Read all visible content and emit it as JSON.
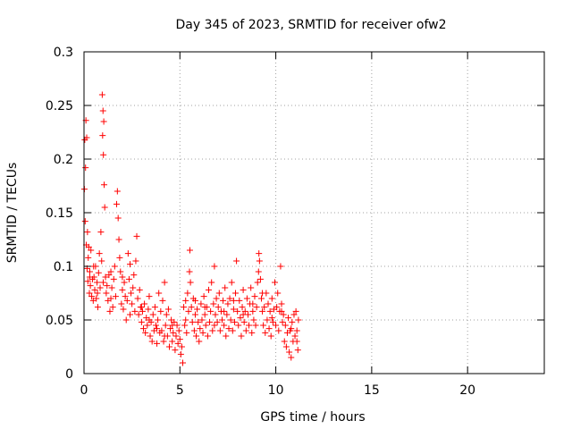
{
  "chart_data": {
    "type": "scatter",
    "title": "Day 345 of 2023, SRMTID for receiver ofw2",
    "xlabel": "GPS time / hours",
    "ylabel": "SRMTID / TECUs",
    "xlim": [
      0,
      24
    ],
    "ylim": [
      0,
      0.3
    ],
    "xticks": [
      0,
      5,
      10,
      15,
      20
    ],
    "yticks": [
      0,
      0.05,
      0.1,
      0.15,
      0.2,
      0.25,
      0.3
    ],
    "xtick_labels": [
      "0",
      "5",
      "10",
      "15",
      "20"
    ],
    "ytick_labels": [
      "0",
      "0.05",
      "0.1",
      "0.15",
      "0.2",
      "0.25",
      "0.3"
    ],
    "grid": true,
    "marker": "+",
    "series": [
      {
        "name": "SRMTID",
        "color": "#ff0000",
        "points": [
          [
            0.02,
            0.172
          ],
          [
            0.04,
            0.218
          ],
          [
            0.06,
            0.142
          ],
          [
            0.08,
            0.192
          ],
          [
            0.1,
            0.236
          ],
          [
            0.12,
            0.12
          ],
          [
            0.14,
            0.22
          ],
          [
            0.16,
            0.098
          ],
          [
            0.18,
            0.132
          ],
          [
            0.2,
            0.086
          ],
          [
            0.22,
            0.108
          ],
          [
            0.25,
            0.118
          ],
          [
            0.28,
            0.075
          ],
          [
            0.3,
            0.095
          ],
          [
            0.33,
            0.082
          ],
          [
            0.36,
            0.115
          ],
          [
            0.4,
            0.072
          ],
          [
            0.44,
            0.088
          ],
          [
            0.48,
            0.068
          ],
          [
            0.52,
            0.09
          ],
          [
            0.56,
            0.078
          ],
          [
            0.6,
            0.1
          ],
          [
            0.64,
            0.07
          ],
          [
            0.68,
            0.085
          ],
          [
            0.72,
            0.062
          ],
          [
            0.76,
            0.094
          ],
          [
            0.8,
            0.112
          ],
          [
            0.84,
            0.08
          ],
          [
            0.88,
            0.132
          ],
          [
            0.92,
            0.105
          ],
          [
            0.95,
            0.26
          ],
          [
            0.97,
            0.222
          ],
          [
            0.99,
            0.245
          ],
          [
            1.01,
            0.204
          ],
          [
            1.03,
            0.235
          ],
          [
            1.05,
            0.176
          ],
          [
            1.08,
            0.155
          ],
          [
            1.12,
            0.09
          ],
          [
            1.16,
            0.075
          ],
          [
            1.2,
            0.082
          ],
          [
            1.25,
            0.068
          ],
          [
            1.3,
            0.092
          ],
          [
            1.35,
            0.058
          ],
          [
            1.4,
            0.07
          ],
          [
            1.45,
            0.08
          ],
          [
            1.5,
            0.062
          ],
          [
            1.55,
            0.088
          ],
          [
            1.6,
            0.1
          ],
          [
            1.65,
            0.072
          ],
          [
            1.7,
            0.158
          ],
          [
            1.74,
            0.17
          ],
          [
            1.78,
            0.145
          ],
          [
            1.82,
            0.125
          ],
          [
            1.86,
            0.108
          ],
          [
            1.9,
            0.095
          ],
          [
            1.95,
            0.065
          ],
          [
            2.0,
            0.078
          ],
          [
            2.05,
            0.06
          ],
          [
            2.1,
            0.085
          ],
          [
            2.15,
            0.072
          ],
          [
            2.2,
            0.05
          ],
          [
            2.25,
            0.068
          ],
          [
            2.3,
            0.112
          ],
          [
            2.35,
            0.088
          ],
          [
            2.4,
            0.102
          ],
          [
            2.45,
            0.075
          ],
          [
            2.5,
            0.065
          ],
          [
            2.55,
            0.08
          ],
          [
            2.6,
            0.092
          ],
          [
            2.65,
            0.058
          ],
          [
            2.7,
            0.105
          ],
          [
            2.75,
            0.128
          ],
          [
            2.8,
            0.07
          ],
          [
            2.85,
            0.055
          ],
          [
            2.9,
            0.078
          ],
          [
            2.95,
            0.062
          ],
          [
            3.0,
            0.048
          ],
          [
            3.05,
            0.058
          ],
          [
            3.1,
            0.042
          ],
          [
            3.15,
            0.065
          ],
          [
            3.2,
            0.038
          ],
          [
            3.25,
            0.052
          ],
          [
            3.3,
            0.045
          ],
          [
            3.35,
            0.06
          ],
          [
            3.4,
            0.072
          ],
          [
            3.45,
            0.035
          ],
          [
            3.5,
            0.048
          ],
          [
            3.55,
            0.03
          ],
          [
            3.6,
            0.055
          ],
          [
            3.65,
            0.04
          ],
          [
            3.7,
            0.062
          ],
          [
            3.75,
            0.045
          ],
          [
            3.8,
            0.028
          ],
          [
            3.85,
            0.05
          ],
          [
            3.9,
            0.075
          ],
          [
            3.95,
            0.038
          ],
          [
            4.0,
            0.058
          ],
          [
            4.05,
            0.04
          ],
          [
            4.1,
            0.068
          ],
          [
            4.15,
            0.03
          ],
          [
            4.2,
            0.085
          ],
          [
            4.25,
            0.045
          ],
          [
            4.3,
            0.055
          ],
          [
            4.35,
            0.035
          ],
          [
            4.4,
            0.06
          ],
          [
            4.45,
            0.025
          ],
          [
            4.5,
            0.042
          ],
          [
            4.55,
            0.05
          ],
          [
            4.6,
            0.03
          ],
          [
            4.65,
            0.038
          ],
          [
            4.7,
            0.048
          ],
          [
            4.75,
            0.022
          ],
          [
            4.8,
            0.035
          ],
          [
            4.85,
            0.045
          ],
          [
            4.9,
            0.028
          ],
          [
            4.95,
            0.04
          ],
          [
            5.0,
            0.032
          ],
          [
            5.05,
            0.018
          ],
          [
            5.1,
            0.025
          ],
          [
            5.15,
            0.01
          ],
          [
            5.2,
            0.062
          ],
          [
            5.25,
            0.045
          ],
          [
            5.3,
            0.068
          ],
          [
            5.35,
            0.038
          ],
          [
            5.4,
            0.075
          ],
          [
            5.45,
            0.058
          ],
          [
            5.5,
            0.095
          ],
          [
            5.52,
            0.115
          ],
          [
            5.55,
            0.085
          ],
          [
            5.6,
            0.062
          ],
          [
            5.65,
            0.048
          ],
          [
            5.7,
            0.07
          ],
          [
            5.75,
            0.04
          ],
          [
            5.8,
            0.055
          ],
          [
            5.85,
            0.035
          ],
          [
            5.9,
            0.06
          ],
          [
            5.95,
            0.048
          ],
          [
            6.0,
            0.03
          ],
          [
            6.05,
            0.042
          ],
          [
            6.1,
            0.065
          ],
          [
            6.15,
            0.05
          ],
          [
            6.2,
            0.038
          ],
          [
            6.25,
            0.072
          ],
          [
            6.3,
            0.055
          ],
          [
            6.35,
            0.045
          ],
          [
            6.4,
            0.062
          ],
          [
            6.45,
            0.035
          ],
          [
            6.5,
            0.078
          ],
          [
            6.55,
            0.048
          ],
          [
            6.6,
            0.058
          ],
          [
            6.65,
            0.085
          ],
          [
            6.7,
            0.04
          ],
          [
            6.75,
            0.065
          ],
          [
            6.8,
            0.1
          ],
          [
            6.85,
            0.055
          ],
          [
            6.9,
            0.07
          ],
          [
            6.95,
            0.048
          ],
          [
            7.0,
            0.062
          ],
          [
            7.05,
            0.075
          ],
          [
            7.1,
            0.04
          ],
          [
            7.15,
            0.058
          ],
          [
            7.2,
            0.05
          ],
          [
            7.25,
            0.068
          ],
          [
            7.3,
            0.045
          ],
          [
            7.35,
            0.08
          ],
          [
            7.4,
            0.035
          ],
          [
            7.45,
            0.055
          ],
          [
            7.5,
            0.065
          ],
          [
            7.55,
            0.042
          ],
          [
            7.6,
            0.07
          ],
          [
            7.65,
            0.05
          ],
          [
            7.7,
            0.085
          ],
          [
            7.75,
            0.04
          ],
          [
            7.8,
            0.06
          ],
          [
            7.85,
            0.048
          ],
          [
            7.9,
            0.075
          ],
          [
            7.95,
            0.105
          ],
          [
            8.0,
            0.058
          ],
          [
            8.05,
            0.045
          ],
          [
            8.1,
            0.068
          ],
          [
            8.15,
            0.052
          ],
          [
            8.2,
            0.035
          ],
          [
            8.25,
            0.062
          ],
          [
            8.3,
            0.078
          ],
          [
            8.35,
            0.048
          ],
          [
            8.4,
            0.058
          ],
          [
            8.45,
            0.04
          ],
          [
            8.5,
            0.07
          ],
          [
            8.55,
            0.055
          ],
          [
            8.6,
            0.045
          ],
          [
            8.65,
            0.065
          ],
          [
            8.7,
            0.08
          ],
          [
            8.75,
            0.038
          ],
          [
            8.8,
            0.058
          ],
          [
            8.85,
            0.05
          ],
          [
            8.9,
            0.072
          ],
          [
            8.95,
            0.045
          ],
          [
            9.0,
            0.062
          ],
          [
            9.05,
            0.085
          ],
          [
            9.1,
            0.095
          ],
          [
            9.12,
            0.112
          ],
          [
            9.15,
            0.105
          ],
          [
            9.2,
            0.088
          ],
          [
            9.25,
            0.07
          ],
          [
            9.3,
            0.058
          ],
          [
            9.35,
            0.045
          ],
          [
            9.4,
            0.062
          ],
          [
            9.45,
            0.038
          ],
          [
            9.5,
            0.075
          ],
          [
            9.55,
            0.05
          ],
          [
            9.6,
            0.065
          ],
          [
            9.65,
            0.042
          ],
          [
            9.7,
            0.058
          ],
          [
            9.75,
            0.035
          ],
          [
            9.8,
            0.07
          ],
          [
            9.85,
            0.048
          ],
          [
            9.9,
            0.06
          ],
          [
            9.95,
            0.085
          ],
          [
            10.0,
            0.045
          ],
          [
            10.05,
            0.062
          ],
          [
            10.1,
            0.075
          ],
          [
            10.15,
            0.04
          ],
          [
            10.2,
            0.058
          ],
          [
            10.25,
            0.1
          ],
          [
            10.3,
            0.065
          ],
          [
            10.35,
            0.048
          ],
          [
            10.4,
            0.055
          ],
          [
            10.45,
            0.03
          ],
          [
            10.5,
            0.045
          ],
          [
            10.55,
            0.025
          ],
          [
            10.6,
            0.038
          ],
          [
            10.65,
            0.052
          ],
          [
            10.7,
            0.02
          ],
          [
            10.75,
            0.04
          ],
          [
            10.8,
            0.015
          ],
          [
            10.85,
            0.048
          ],
          [
            10.9,
            0.03
          ],
          [
            10.95,
            0.055
          ],
          [
            11.0,
            0.035
          ],
          [
            11.05,
            0.058
          ],
          [
            11.1,
            0.04
          ],
          [
            11.15,
            0.022
          ],
          [
            11.18,
            0.05
          ],
          [
            0.3,
            0.09
          ],
          [
            0.5,
            0.1
          ],
          [
            0.7,
            0.075
          ],
          [
            1.0,
            0.085
          ],
          [
            1.4,
            0.095
          ],
          [
            2.0,
            0.09
          ],
          [
            2.4,
            0.055
          ],
          [
            3.0,
            0.062
          ],
          [
            3.4,
            0.05
          ],
          [
            3.8,
            0.042
          ],
          [
            4.2,
            0.035
          ],
          [
            4.6,
            0.045
          ],
          [
            5.3,
            0.05
          ],
          [
            5.8,
            0.068
          ],
          [
            6.3,
            0.062
          ],
          [
            6.8,
            0.045
          ],
          [
            7.3,
            0.058
          ],
          [
            7.8,
            0.068
          ],
          [
            8.3,
            0.055
          ],
          [
            8.8,
            0.065
          ],
          [
            9.3,
            0.075
          ],
          [
            9.8,
            0.052
          ],
          [
            10.3,
            0.058
          ],
          [
            10.8,
            0.042
          ],
          [
            11.1,
            0.03
          ]
        ]
      }
    ]
  }
}
